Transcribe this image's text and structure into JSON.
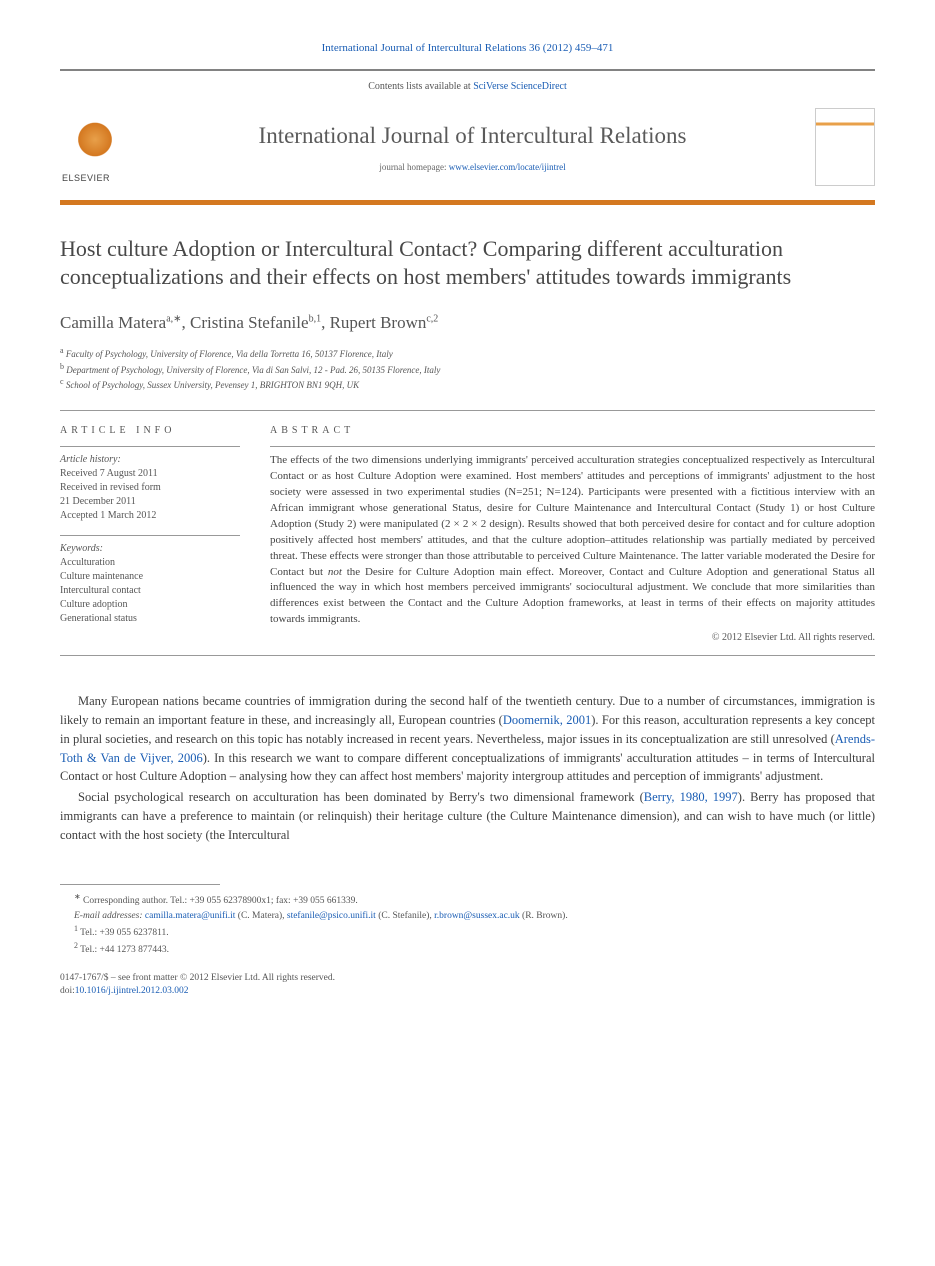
{
  "header": {
    "citation": "International Journal of Intercultural Relations 36 (2012) 459–471",
    "contents_prefix": "Contents lists available at ",
    "contents_link": "SciVerse ScienceDirect",
    "journal_title": "International Journal of Intercultural Relations",
    "homepage_prefix": "journal homepage: ",
    "homepage_url": "www.elsevier.com/locate/ijintrel",
    "publisher": "ELSEVIER"
  },
  "article": {
    "title": "Host culture Adoption or Intercultural Contact? Comparing different acculturation conceptualizations and their effects on host members' attitudes towards immigrants",
    "authors_html": "Camilla Matera",
    "author1_name": "Camilla Matera",
    "author1_sup": "a,∗",
    "author2_name": "Cristina Stefanile",
    "author2_sup": "b,1",
    "author3_name": "Rupert Brown",
    "author3_sup": "c,2",
    "sep": ", ",
    "affiliations": {
      "a_sup": "a",
      "a": " Faculty of Psychology, University of Florence, Via della Torretta 16, 50137 Florence, Italy",
      "b_sup": "b",
      "b": " Department of Psychology, University of Florence, Via di San Salvi, 12 - Pad. 26, 50135 Florence, Italy",
      "c_sup": "c",
      "c": " School of Psychology, Sussex University, Pevensey 1, BRIGHTON BN1 9QH, UK"
    }
  },
  "info": {
    "heading": "ARTICLE INFO",
    "history_label": "Article history:",
    "received": "Received 7 August 2011",
    "revised_l1": "Received in revised form",
    "revised_l2": "21 December 2011",
    "accepted": "Accepted 1 March 2012",
    "keywords_label": "Keywords:",
    "kw1": "Acculturation",
    "kw2": "Culture maintenance",
    "kw3": "Intercultural contact",
    "kw4": "Culture adoption",
    "kw5": "Generational status"
  },
  "abstract": {
    "heading": "ABSTRACT",
    "text_before_not": "The effects of the two dimensions underlying immigrants' perceived acculturation strategies conceptualized respectively as Intercultural Contact or as host Culture Adoption were examined. Host members' attitudes and perceptions of immigrants' adjustment to the host society were assessed in two experimental studies (N=251; N=124). Participants were presented with a fictitious interview with an African immigrant whose generational Status, desire for Culture Maintenance and Intercultural Contact (Study 1) or host Culture Adoption (Study 2) were manipulated (2 × 2 × 2 design). Results showed that both perceived desire for contact and for culture adoption positively affected host members' attitudes, and that the culture adoption–attitudes relationship was partially mediated by perceived threat. These effects were stronger than those attributable to perceived Culture Maintenance. The latter variable moderated the Desire for Contact but ",
    "not_word": "not",
    "text_after_not": " the Desire for Culture Adoption main effect. Moreover, Contact and Culture Adoption and generational Status all influenced the way in which host members perceived immigrants' sociocultural adjustment. We conclude that more similarities than differences exist between the Contact and the Culture Adoption frameworks, at least in terms of their effects on majority attitudes towards immigrants.",
    "copyright": "© 2012 Elsevier Ltd. All rights reserved."
  },
  "body": {
    "p1_a": "Many European nations became countries of immigration during the second half of the twentieth century. Due to a number of circumstances, immigration is likely to remain an important feature in these, and increasingly all, European countries (",
    "p1_link1": "Doomernik, 2001",
    "p1_b": "). For this reason, acculturation represents a key concept in plural societies, and research on this topic has notably increased in recent years. Nevertheless, major issues in its conceptualization are still unresolved (",
    "p1_link2": "Arends-Toth & Van de Vijver, 2006",
    "p1_c": "). In this research we want to compare different conceptualizations of immigrants' acculturation attitudes – in terms of Intercultural Contact or host Culture Adoption – analysing how they can affect host members' majority intergroup attitudes and perception of immigrants' adjustment.",
    "p2_a": "Social psychological research on acculturation has been dominated by Berry's two dimensional framework (",
    "p2_link1": "Berry, 1980, 1997",
    "p2_b": "). Berry has proposed that immigrants can have a preference to maintain (or relinquish) their heritage culture (the Culture Maintenance dimension), and can wish to have much (or little) contact with the host society (the Intercultural"
  },
  "footnotes": {
    "corr_sup": "∗",
    "corr": " Corresponding author. Tel.: +39 055 62378900x1; fax: +39 055 661339.",
    "email_label": "E-mail addresses: ",
    "email1": "camilla.matera@unifi.it",
    "email1_who": " (C. Matera), ",
    "email2": "stefanile@psico.unifi.it",
    "email2_who": " (C. Stefanile), ",
    "email3": "r.brown@sussex.ac.uk",
    "email3_who": " (R. Brown).",
    "fn1_sup": "1",
    "fn1": " Tel.: +39 055 6237811.",
    "fn2_sup": "2",
    "fn2": " Tel.: +44 1273 877443."
  },
  "footer": {
    "issn_line": "0147-1767/$ – see front matter © 2012 Elsevier Ltd. All rights reserved.",
    "doi_prefix": "doi:",
    "doi": "10.1016/j.ijintrel.2012.03.002"
  },
  "colors": {
    "link_color": "#1a5db4",
    "orange_rule": "#d47820",
    "gray_rule": "#828282",
    "text_body": "#3d3d3d",
    "text_muted": "#555555"
  }
}
